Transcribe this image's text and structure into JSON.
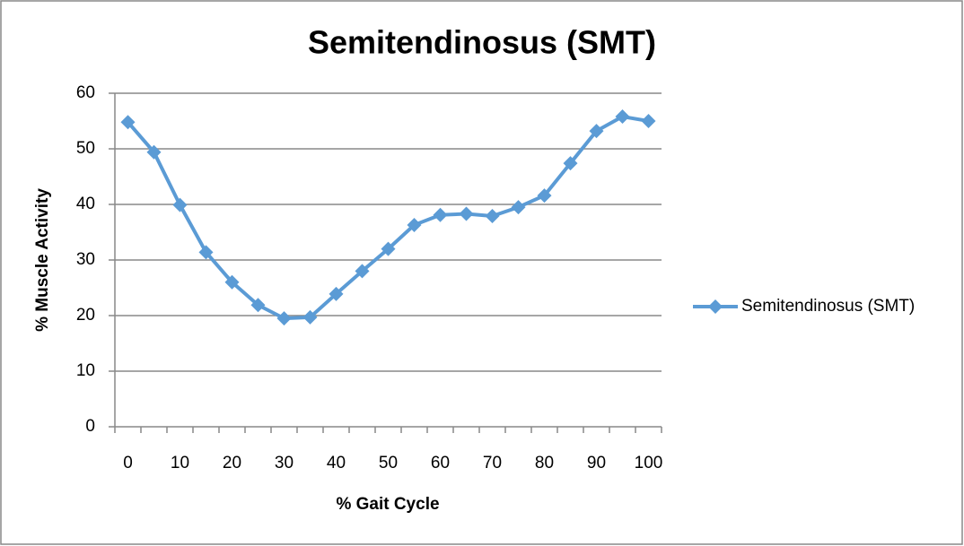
{
  "chart_data": {
    "type": "line",
    "title": "Semitendinosus (SMT)",
    "x_label": "% Gait Cycle",
    "y_label": "% Muscle Activity",
    "categories": [
      0,
      null,
      10,
      null,
      20,
      null,
      30,
      null,
      40,
      null,
      50,
      null,
      60,
      null,
      70,
      null,
      80,
      null,
      90,
      null,
      100
    ],
    "series": [
      {
        "name": "Semitendinosus (SMT)",
        "color": "#5b9bd5",
        "values": [
          54.8,
          49.4,
          39.9,
          31.4,
          26.0,
          21.9,
          19.5,
          19.7,
          23.9,
          28.0,
          32.0,
          36.3,
          38.1,
          38.3,
          37.9,
          39.5,
          41.6,
          47.4,
          53.2,
          55.8,
          55.0
        ]
      }
    ],
    "ylim": [
      0,
      60
    ],
    "yticks": [
      0,
      10,
      20,
      30,
      40,
      50,
      60
    ],
    "grid": true,
    "legend": "right"
  }
}
